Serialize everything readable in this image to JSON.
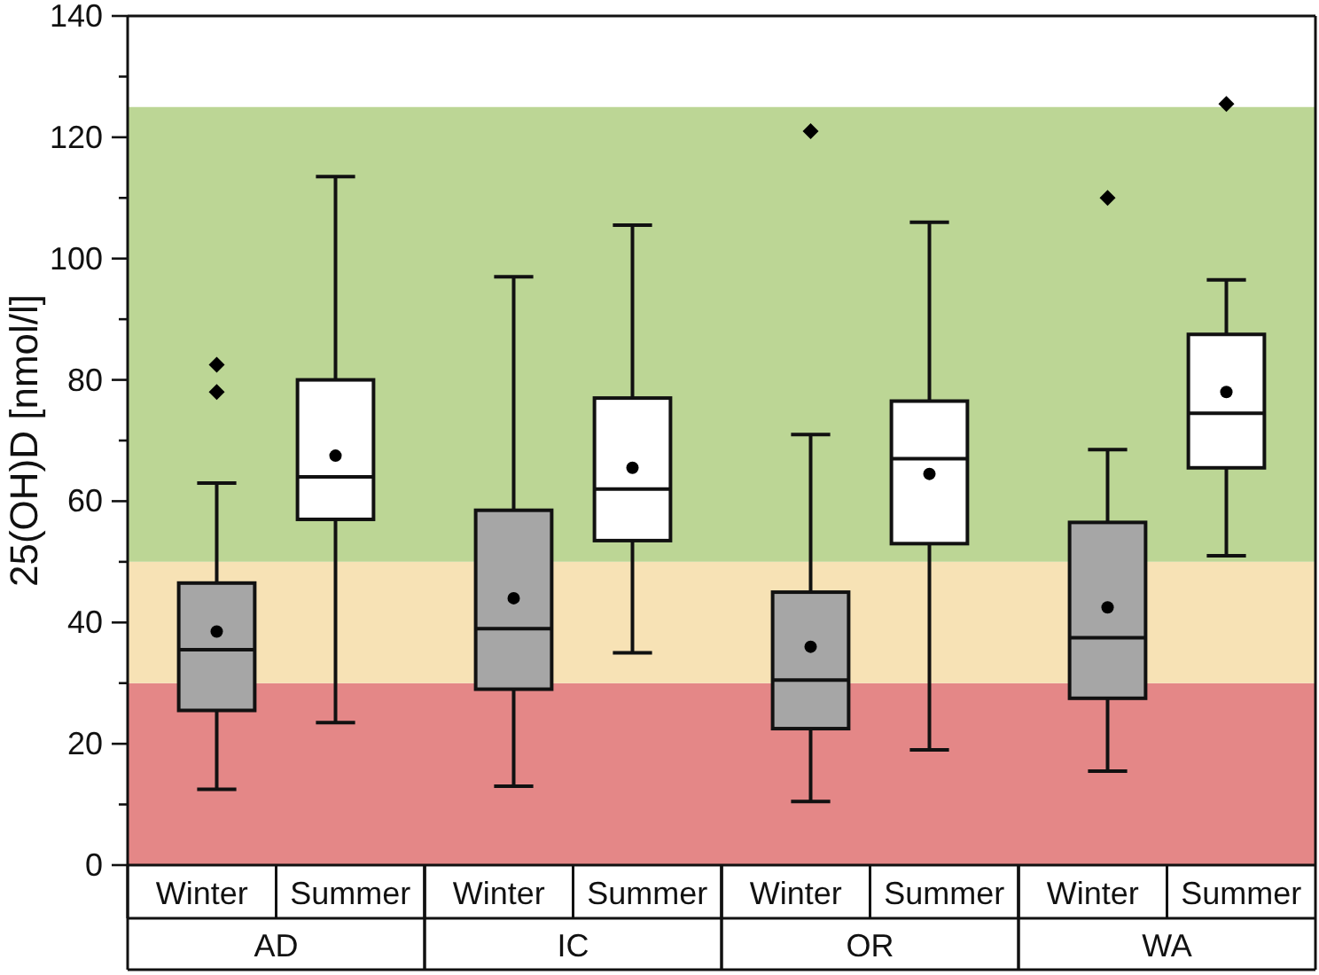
{
  "chart_data": {
    "type": "box",
    "ylabel": "25(OH)D [nmol/l]",
    "categories": [
      "AD",
      "IC",
      "OR",
      "WA"
    ],
    "series": [
      {
        "name": "Winter",
        "color": "#a6a6a6",
        "boxes": [
          {
            "low": 12.5,
            "q1": 25.5,
            "median": 35.5,
            "q3": 46.5,
            "high": 63,
            "mean": 38.5,
            "outliers": [
              82.5,
              78
            ]
          },
          {
            "low": 13,
            "q1": 29,
            "median": 39,
            "q3": 58.5,
            "high": 97,
            "mean": 44
          },
          {
            "low": 10.5,
            "q1": 22.5,
            "median": 30.5,
            "q3": 45,
            "high": 71,
            "mean": 36,
            "outliers": [
              121
            ]
          },
          {
            "low": 15.5,
            "q1": 27.5,
            "median": 37.5,
            "q3": 56.5,
            "high": 68.5,
            "mean": 42.5,
            "outliers": [
              110
            ]
          }
        ]
      },
      {
        "name": "Summer",
        "color": "#ffffff",
        "boxes": [
          {
            "low": 23.5,
            "q1": 57,
            "median": 64,
            "q3": 80,
            "high": 113.5,
            "mean": 67.5
          },
          {
            "low": 35,
            "q1": 53.5,
            "median": 62,
            "q3": 77,
            "high": 105.5,
            "mean": 65.5
          },
          {
            "low": 19,
            "q1": 53,
            "median": 67,
            "q3": 76.5,
            "high": 106,
            "mean": 64.5
          },
          {
            "low": 51,
            "q1": 65.5,
            "median": 74.5,
            "q3": 87.5,
            "high": 96.5,
            "mean": 78,
            "outliers": [
              125.5
            ]
          }
        ]
      }
    ],
    "ylim": [
      0,
      140
    ],
    "yticks": [
      0,
      {
        "value": 10,
        "label": null
      },
      20,
      {
        "value": 30,
        "label": null
      },
      40,
      {
        "value": 50,
        "label": null
      },
      60,
      {
        "value": 70,
        "label": null
      },
      80,
      {
        "value": 90,
        "label": null
      },
      100,
      {
        "value": 110,
        "label": null
      },
      120,
      {
        "value": 130,
        "label": null
      },
      140
    ],
    "bands": [
      {
        "axis": "y",
        "from": 0,
        "to": 30,
        "color": "#e48787"
      },
      {
        "axis": "y",
        "from": 30,
        "to": 50,
        "color": "#f7e2b5"
      },
      {
        "axis": "y",
        "from": 50,
        "to": 125,
        "color": "#bcd695"
      }
    ],
    "legend": "bottom"
  }
}
